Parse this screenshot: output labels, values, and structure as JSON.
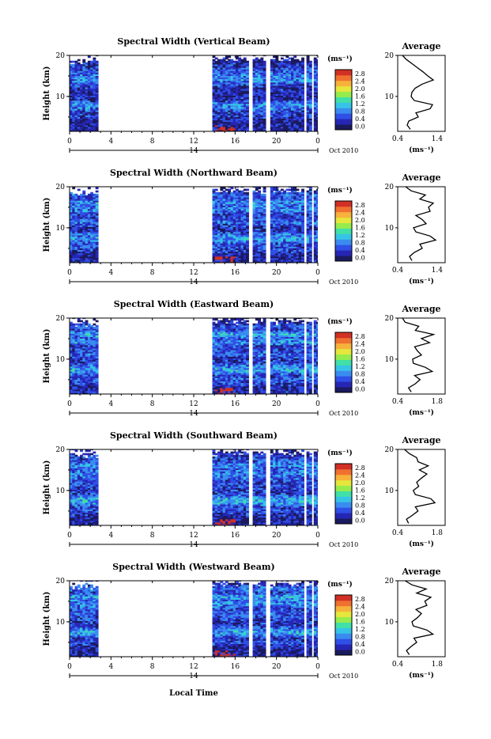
{
  "figure": {
    "xlabel": "Local Time",
    "date_label": "Oct 2010",
    "ylabel": "Height (km)",
    "unit_label": "(ms⁻¹)",
    "avg_title": "Average",
    "avg_xlabel": "(ms⁻¹)",
    "day_label": "14"
  },
  "colorbar": {
    "ticks": [
      "0.0",
      "0.4",
      "0.8",
      "1.2",
      "1.6",
      "2.0",
      "2.4",
      "2.8"
    ],
    "colors": [
      "#1a1a5e",
      "#2626b4",
      "#2f4fe6",
      "#3a8cf0",
      "#36c4e6",
      "#40e0a8",
      "#96ec4c",
      "#e6e63c",
      "#f6b23a",
      "#f07030",
      "#d23024"
    ]
  },
  "chart_data": [
    {
      "type": "heatmap",
      "title": "Spectral Width (Vertical Beam)",
      "xlabel": "Local Time",
      "ylabel": "Height (km)",
      "xlim": [
        0,
        24
      ],
      "ylim": [
        1.5,
        20
      ],
      "xticks": [
        "0",
        "4",
        "8",
        "12",
        "16",
        "20",
        "0"
      ],
      "yticks": [
        "10",
        "20"
      ],
      "data_segments": [
        [
          0,
          2.7
        ],
        [
          13.8,
          17.3
        ],
        [
          17.7,
          18.8
        ],
        [
          19.4,
          22.5
        ],
        [
          22.9,
          23.3
        ],
        [
          23.6,
          24
        ]
      ],
      "average_profile": {
        "type": "line",
        "xlabel": "(ms⁻¹)",
        "xlim": [
          0.4,
          1.6
        ],
        "xticks": [
          "0.4",
          "1.4"
        ],
        "height": [
          2,
          3,
          4,
          5,
          6,
          7,
          8,
          9,
          10,
          11,
          12,
          13,
          14,
          15,
          16,
          17,
          18,
          19,
          20
        ],
        "value": [
          0.72,
          0.64,
          0.68,
          0.92,
          0.86,
          1.22,
          1.28,
          0.82,
          0.74,
          0.76,
          0.84,
          1.02,
          1.3,
          1.16,
          1.04,
          0.9,
          0.76,
          0.62,
          0.52
        ]
      }
    },
    {
      "type": "heatmap",
      "title": "Spectral Width (Northward Beam)",
      "xlabel": "Local Time",
      "ylabel": "Height (km)",
      "xlim": [
        0,
        24
      ],
      "ylim": [
        1.5,
        20
      ],
      "xticks": [
        "0",
        "4",
        "8",
        "12",
        "16",
        "20",
        "0"
      ],
      "yticks": [
        "10",
        "20"
      ],
      "data_segments": [
        [
          0,
          2.7
        ],
        [
          13.8,
          17.3
        ],
        [
          17.7,
          18.8
        ],
        [
          19.4,
          22.5
        ],
        [
          22.9,
          23.3
        ],
        [
          23.6,
          24
        ]
      ],
      "average_profile": {
        "type": "line",
        "xlabel": "(ms⁻¹)",
        "xlim": [
          0.4,
          1.6
        ],
        "xticks": [
          "0.4",
          "1.4"
        ],
        "height": [
          2,
          3,
          4,
          5,
          6,
          7,
          8,
          9,
          10,
          11,
          12,
          13,
          14,
          15,
          16,
          17,
          18,
          19,
          20
        ],
        "value": [
          0.76,
          0.7,
          0.82,
          1.02,
          0.96,
          1.36,
          1.22,
          0.86,
          0.8,
          1.12,
          1.02,
          0.86,
          1.22,
          1.18,
          1.3,
          0.96,
          1.1,
          0.74,
          0.6
        ]
      }
    },
    {
      "type": "heatmap",
      "title": "Spectral Width (Eastward Beam)",
      "xlabel": "Local Time",
      "ylabel": "Height (km)",
      "xlim": [
        0,
        24
      ],
      "ylim": [
        1.5,
        20
      ],
      "xticks": [
        "0",
        "4",
        "8",
        "12",
        "16",
        "20",
        "0"
      ],
      "yticks": [
        "10",
        "20"
      ],
      "data_segments": [
        [
          0,
          2.7
        ],
        [
          13.8,
          17.3
        ],
        [
          17.7,
          18.8
        ],
        [
          19.4,
          22.5
        ],
        [
          22.9,
          23.3
        ],
        [
          23.6,
          24
        ]
      ],
      "average_profile": {
        "type": "line",
        "xlabel": "(ms⁻¹)",
        "xlim": [
          0.4,
          1.8
        ],
        "xticks": [
          "0.4",
          "1.8"
        ],
        "height": [
          2,
          3,
          4,
          5,
          6,
          7,
          8,
          9,
          10,
          11,
          12,
          13,
          14,
          15,
          16,
          17,
          18,
          19,
          20
        ],
        "value": [
          0.8,
          0.72,
          0.92,
          1.06,
          0.9,
          1.42,
          1.22,
          0.86,
          0.84,
          1.1,
          0.98,
          0.9,
          1.34,
          1.1,
          1.46,
          0.92,
          1.02,
          0.62,
          0.54
        ]
      }
    },
    {
      "type": "heatmap",
      "title": "Spectral Width (Southward Beam)",
      "xlabel": "Local Time",
      "ylabel": "Height (km)",
      "xlim": [
        0,
        24
      ],
      "ylim": [
        1.5,
        20
      ],
      "xticks": [
        "0",
        "4",
        "8",
        "12",
        "16",
        "20",
        "0"
      ],
      "yticks": [
        "10",
        "20"
      ],
      "data_segments": [
        [
          0,
          2.7
        ],
        [
          13.8,
          17.3
        ],
        [
          17.7,
          18.8
        ],
        [
          19.4,
          22.5
        ],
        [
          22.9,
          23.3
        ],
        [
          23.6,
          24
        ]
      ],
      "average_profile": {
        "type": "line",
        "xlabel": "(ms⁻¹)",
        "xlim": [
          0.4,
          1.8
        ],
        "xticks": [
          "0.4",
          "1.8"
        ],
        "height": [
          2,
          3,
          4,
          5,
          6,
          7,
          8,
          9,
          10,
          11,
          12,
          13,
          14,
          15,
          16,
          17,
          18,
          19,
          20
        ],
        "value": [
          0.72,
          0.66,
          0.84,
          1.0,
          0.92,
          1.5,
          1.38,
          0.92,
          0.86,
          1.02,
          0.96,
          1.1,
          1.26,
          1.04,
          1.3,
          1.0,
          0.96,
          0.74,
          0.6
        ]
      }
    },
    {
      "type": "heatmap",
      "title": "Spectral Width (Westward Beam)",
      "xlabel": "Local Time",
      "ylabel": "Height (km)",
      "xlim": [
        0,
        24
      ],
      "ylim": [
        1.5,
        20
      ],
      "xticks": [
        "0",
        "4",
        "8",
        "12",
        "16",
        "20",
        "0"
      ],
      "yticks": [
        "10",
        "20"
      ],
      "data_segments": [
        [
          0,
          2.7
        ],
        [
          13.8,
          17.3
        ],
        [
          17.7,
          18.8
        ],
        [
          19.4,
          22.5
        ],
        [
          22.9,
          23.3
        ],
        [
          23.6,
          24
        ]
      ],
      "average_profile": {
        "type": "line",
        "xlabel": "(ms⁻¹)",
        "xlim": [
          0.4,
          1.8
        ],
        "xticks": [
          "0.4",
          "1.8"
        ],
        "height": [
          2,
          3,
          4,
          5,
          6,
          7,
          8,
          9,
          10,
          11,
          12,
          13,
          14,
          15,
          16,
          17,
          18,
          19,
          20
        ],
        "value": [
          0.74,
          0.66,
          0.8,
          0.96,
          0.88,
          1.44,
          1.26,
          0.86,
          0.82,
          0.98,
          1.1,
          0.94,
          1.26,
          1.2,
          1.38,
          0.96,
          1.24,
          0.82,
          0.62
        ]
      }
    }
  ]
}
